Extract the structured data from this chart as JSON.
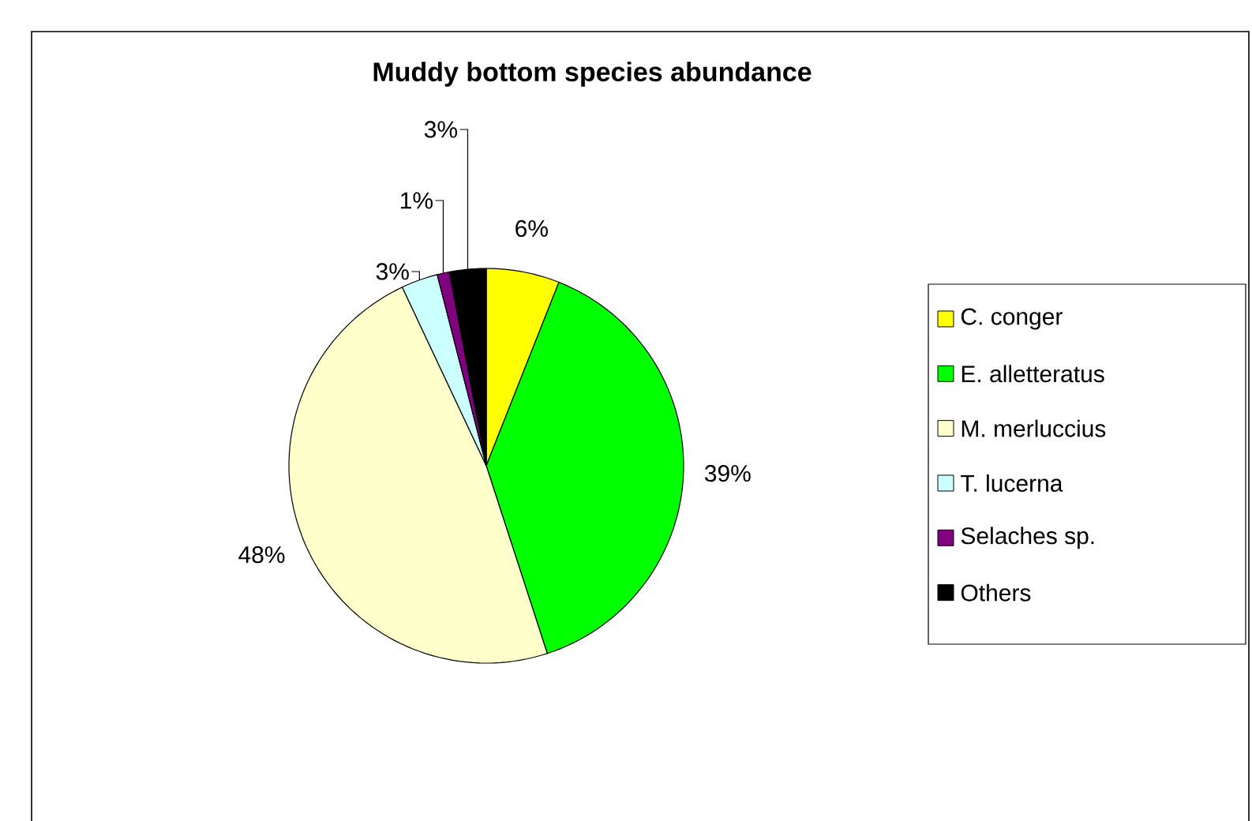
{
  "chart_data": {
    "type": "pie",
    "title": "Muddy bottom species abundance",
    "categories": [
      "C. conger",
      "E. alletteratus",
      "M. merluccius",
      "T. lucerna",
      "Selaches sp.",
      "Others"
    ],
    "values": [
      6,
      39,
      48,
      3,
      1,
      3
    ],
    "value_labels": [
      "6%",
      "39%",
      "48%",
      "3%",
      "1%",
      "3%"
    ],
    "colors": [
      "#ffff00",
      "#00ff00",
      "#ffffcc",
      "#ccffff",
      "#800080",
      "#000000"
    ],
    "legend": "right"
  }
}
